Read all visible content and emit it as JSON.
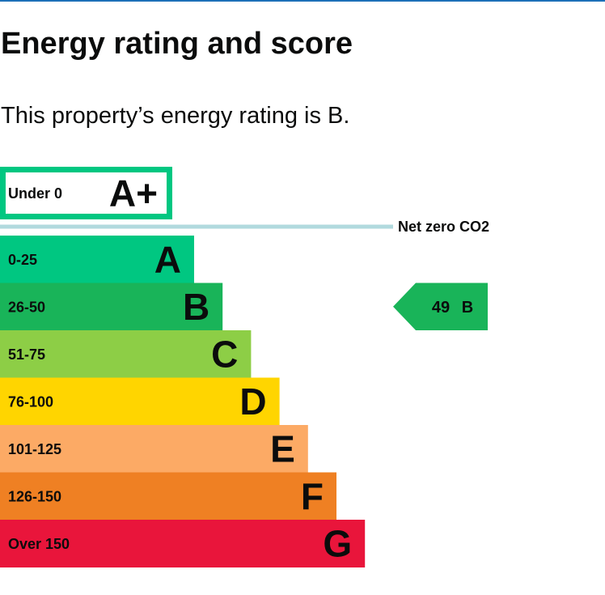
{
  "page": {
    "title": "Energy rating and score",
    "summary": "This property’s energy rating is B."
  },
  "chart_data": {
    "type": "bar",
    "xlabel": "",
    "ylabel": "",
    "score_range": [
      -10,
      160
    ],
    "categories": [
      "A+",
      "A",
      "B",
      "C",
      "D",
      "E",
      "F",
      "G"
    ],
    "bands": [
      {
        "letter": "A+",
        "range": "Under 0",
        "color": "#ffffff",
        "border": "#00c781"
      },
      {
        "letter": "A",
        "range": "0-25",
        "color": "#00c781"
      },
      {
        "letter": "B",
        "range": "26-50",
        "color": "#19b459"
      },
      {
        "letter": "C",
        "range": "51-75",
        "color": "#8dce46"
      },
      {
        "letter": "D",
        "range": "76-100",
        "color": "#ffd500"
      },
      {
        "letter": "E",
        "range": "101-125",
        "color": "#fcaa65"
      },
      {
        "letter": "F",
        "range": "126-150",
        "color": "#ef8023"
      },
      {
        "letter": "G",
        "range": "Over 150",
        "color": "#e9153b"
      }
    ],
    "net_zero": {
      "label": "Net zero CO2",
      "color": "#b1dade"
    },
    "current": {
      "score": 49,
      "band": "B",
      "color": "#19b459"
    }
  }
}
